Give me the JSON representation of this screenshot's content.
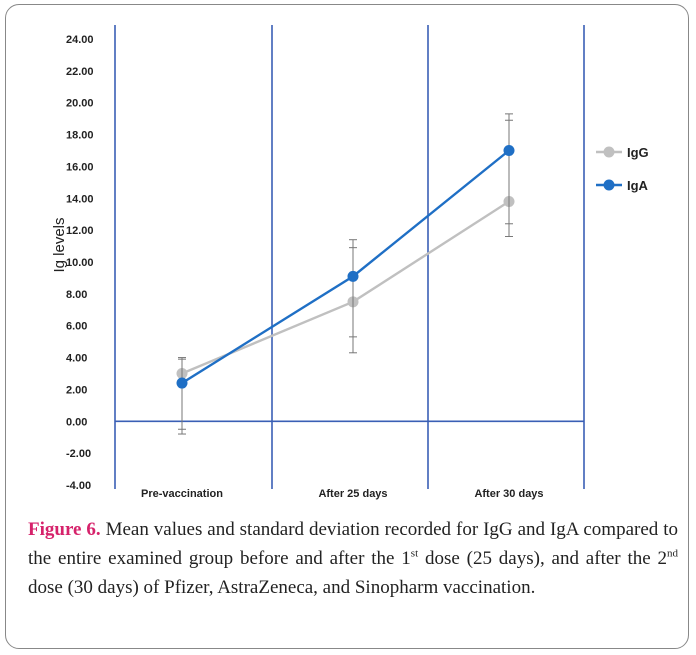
{
  "chart_data": {
    "type": "line",
    "ylabel": "Ig levels",
    "ylim": [
      -4,
      24
    ],
    "yticks": [
      "24.00",
      "22.00",
      "20.00",
      "18.00",
      "16.00",
      "14.00",
      "12.00",
      "10.00",
      "8.00",
      "6.00",
      "4.00",
      "2.00",
      "0.00",
      "-2.00",
      "-4.00"
    ],
    "categories": [
      "Pre-vaccination",
      "After 25 days",
      "After 30 days"
    ],
    "series": [
      {
        "name": "IgG",
        "color": "#c0c0c0",
        "values": [
          3.0,
          7.5,
          13.8
        ],
        "error_low": [
          -0.8,
          4.3,
          11.6
        ],
        "error_high": [
          4.0,
          10.9,
          18.9
        ]
      },
      {
        "name": "IgA",
        "color": "#1f6fc5",
        "values": [
          2.4,
          9.1,
          17.0
        ],
        "error_low": [
          -0.5,
          5.3,
          12.4
        ],
        "error_high": [
          3.9,
          11.4,
          19.3
        ]
      }
    ],
    "legend": "right",
    "grid": false,
    "colors": {
      "axis_lines": "#3a5fb5"
    }
  },
  "caption": {
    "label": "Figure 6.",
    "text_1": " Mean values and standard deviation recorded for IgG and IgA compared to the entire examined group before and after the 1",
    "sup_1": "st",
    "text_2": " dose (25 days), and after the 2",
    "sup_2": "nd",
    "text_3": " dose (30 days) of Pfizer, AstraZeneca, and Sinopharm vaccination."
  }
}
